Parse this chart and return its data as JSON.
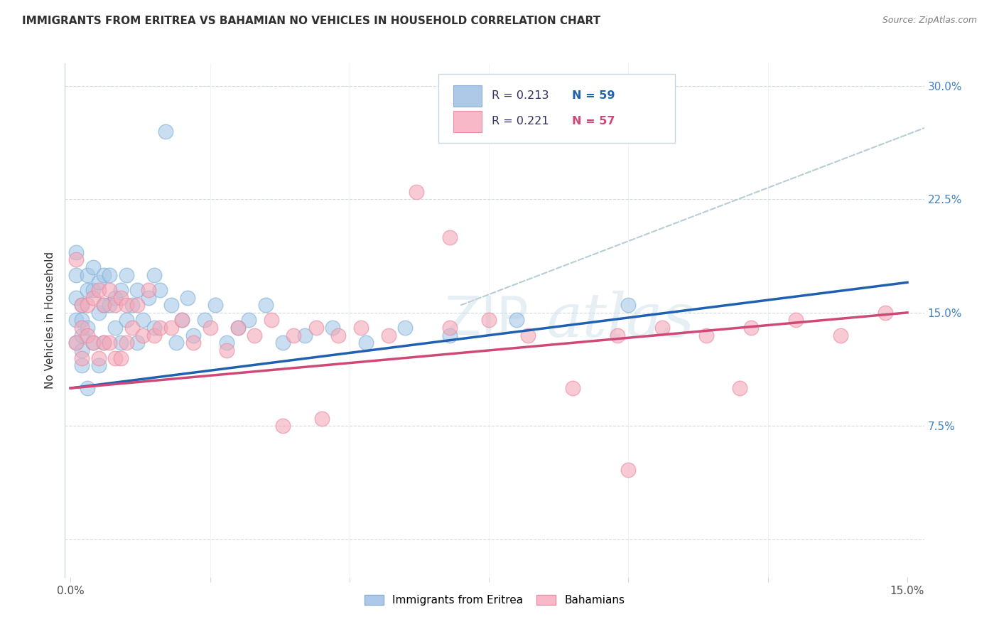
{
  "title": "IMMIGRANTS FROM ERITREA VS BAHAMIAN NO VEHICLES IN HOUSEHOLD CORRELATION CHART",
  "source": "Source: ZipAtlas.com",
  "ylabel": "No Vehicles in Household",
  "series1_label": "Immigrants from Eritrea",
  "series2_label": "Bahamians",
  "series1_color": "#a8c8e8",
  "series2_color": "#f4a8b8",
  "series1_edge": "#7aafd4",
  "series2_edge": "#e888a0",
  "series1_line_color": "#2060b0",
  "series2_line_color": "#d04878",
  "trend_ext_color": "#b0c8d0",
  "watermark": "ZIPatlas",
  "watermark_color": "#d8e8f0",
  "grid_color": "#d0d8e0",
  "title_color": "#303030",
  "source_color": "#808080",
  "legend_text_color": "#303060",
  "legend_n_color": "#2060b0",
  "legend_n2_color": "#d04878",
  "background": "#ffffff",
  "xmin": -0.001,
  "xmax": 0.153,
  "ymin": -0.025,
  "ymax": 0.315,
  "yticks": [
    0.0,
    0.075,
    0.15,
    0.225,
    0.3
  ],
  "ytick_labels_right": [
    "",
    "7.5%",
    "15.0%",
    "22.5%",
    "30.0%"
  ],
  "xtick_vals": [
    0.0,
    0.025,
    0.05,
    0.075,
    0.1,
    0.125,
    0.15
  ],
  "xtick_labels": [
    "0.0%",
    "",
    "",
    "",
    "",
    "",
    "15.0%"
  ],
  "s1_x": [
    0.001,
    0.001,
    0.001,
    0.001,
    0.001,
    0.002,
    0.002,
    0.002,
    0.002,
    0.002,
    0.003,
    0.003,
    0.003,
    0.003,
    0.004,
    0.004,
    0.004,
    0.005,
    0.005,
    0.005,
    0.006,
    0.006,
    0.006,
    0.007,
    0.007,
    0.008,
    0.008,
    0.009,
    0.009,
    0.01,
    0.01,
    0.011,
    0.012,
    0.012,
    0.013,
    0.014,
    0.015,
    0.015,
    0.016,
    0.017,
    0.018,
    0.019,
    0.02,
    0.021,
    0.022,
    0.024,
    0.026,
    0.028,
    0.03,
    0.032,
    0.035,
    0.038,
    0.042,
    0.047,
    0.053,
    0.06,
    0.068,
    0.08,
    0.1
  ],
  "s1_y": [
    0.19,
    0.175,
    0.16,
    0.145,
    0.13,
    0.155,
    0.145,
    0.135,
    0.125,
    0.115,
    0.175,
    0.165,
    0.14,
    0.1,
    0.18,
    0.165,
    0.13,
    0.17,
    0.15,
    0.115,
    0.175,
    0.155,
    0.13,
    0.175,
    0.155,
    0.16,
    0.14,
    0.165,
    0.13,
    0.175,
    0.145,
    0.155,
    0.165,
    0.13,
    0.145,
    0.16,
    0.175,
    0.14,
    0.165,
    0.27,
    0.155,
    0.13,
    0.145,
    0.16,
    0.135,
    0.145,
    0.155,
    0.13,
    0.14,
    0.145,
    0.155,
    0.13,
    0.135,
    0.14,
    0.13,
    0.14,
    0.135,
    0.145,
    0.155
  ],
  "s2_x": [
    0.001,
    0.001,
    0.002,
    0.002,
    0.002,
    0.003,
    0.003,
    0.004,
    0.004,
    0.005,
    0.005,
    0.006,
    0.006,
    0.007,
    0.007,
    0.008,
    0.008,
    0.009,
    0.009,
    0.01,
    0.01,
    0.011,
    0.012,
    0.013,
    0.014,
    0.015,
    0.016,
    0.018,
    0.02,
    0.022,
    0.025,
    0.028,
    0.03,
    0.033,
    0.036,
    0.04,
    0.044,
    0.048,
    0.052,
    0.057,
    0.062,
    0.068,
    0.075,
    0.082,
    0.09,
    0.098,
    0.106,
    0.114,
    0.122,
    0.13,
    0.138,
    0.146,
    0.068,
    0.038,
    0.045,
    0.1,
    0.12
  ],
  "s2_y": [
    0.185,
    0.13,
    0.155,
    0.14,
    0.12,
    0.155,
    0.135,
    0.16,
    0.13,
    0.165,
    0.12,
    0.155,
    0.13,
    0.165,
    0.13,
    0.155,
    0.12,
    0.16,
    0.12,
    0.155,
    0.13,
    0.14,
    0.155,
    0.135,
    0.165,
    0.135,
    0.14,
    0.14,
    0.145,
    0.13,
    0.14,
    0.125,
    0.14,
    0.135,
    0.145,
    0.135,
    0.14,
    0.135,
    0.14,
    0.135,
    0.23,
    0.14,
    0.145,
    0.135,
    0.1,
    0.135,
    0.14,
    0.135,
    0.14,
    0.145,
    0.135,
    0.15,
    0.2,
    0.075,
    0.08,
    0.046,
    0.1
  ]
}
